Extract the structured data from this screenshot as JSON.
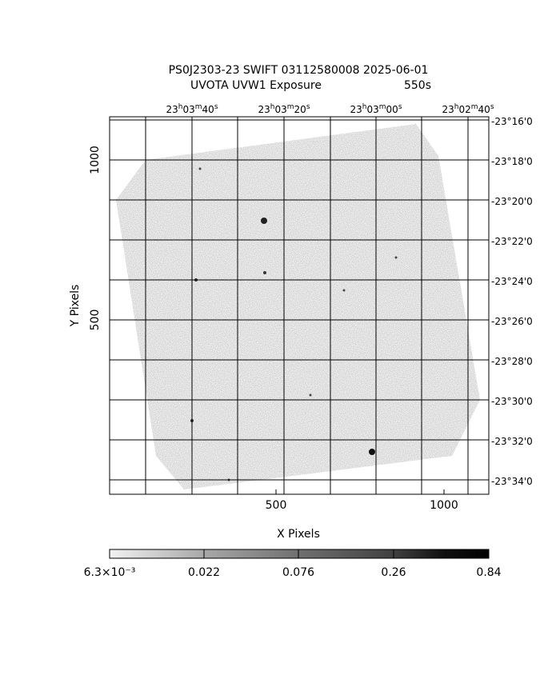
{
  "title": {
    "line1": "PS0J2303-23 SWIFT 03112580008 2025-06-01",
    "line2": "UVOTA UVW1 Exposure",
    "exposure": "550s"
  },
  "axes": {
    "x_label": "X Pixels",
    "y_label": "Y Pixels",
    "x_ticks": [
      "500",
      "1000"
    ],
    "y_ticks": [
      "1000",
      "500"
    ],
    "ra_ticks": [
      "23h03m40s",
      "23h03m20s",
      "23h03m00s",
      "23h02m40s"
    ],
    "dec_ticks": [
      "-23°16'0",
      "-23°18'0",
      "-23°20'0",
      "-23°22'0",
      "-23°24'0",
      "-23°26'0",
      "-23°28'0",
      "-23°30'0",
      "-23°32'0",
      "-23°34'0"
    ]
  },
  "colorbar": {
    "labels": [
      "6.3×10⁻³",
      "0.022",
      "0.076",
      "0.26",
      "0.84"
    ]
  }
}
